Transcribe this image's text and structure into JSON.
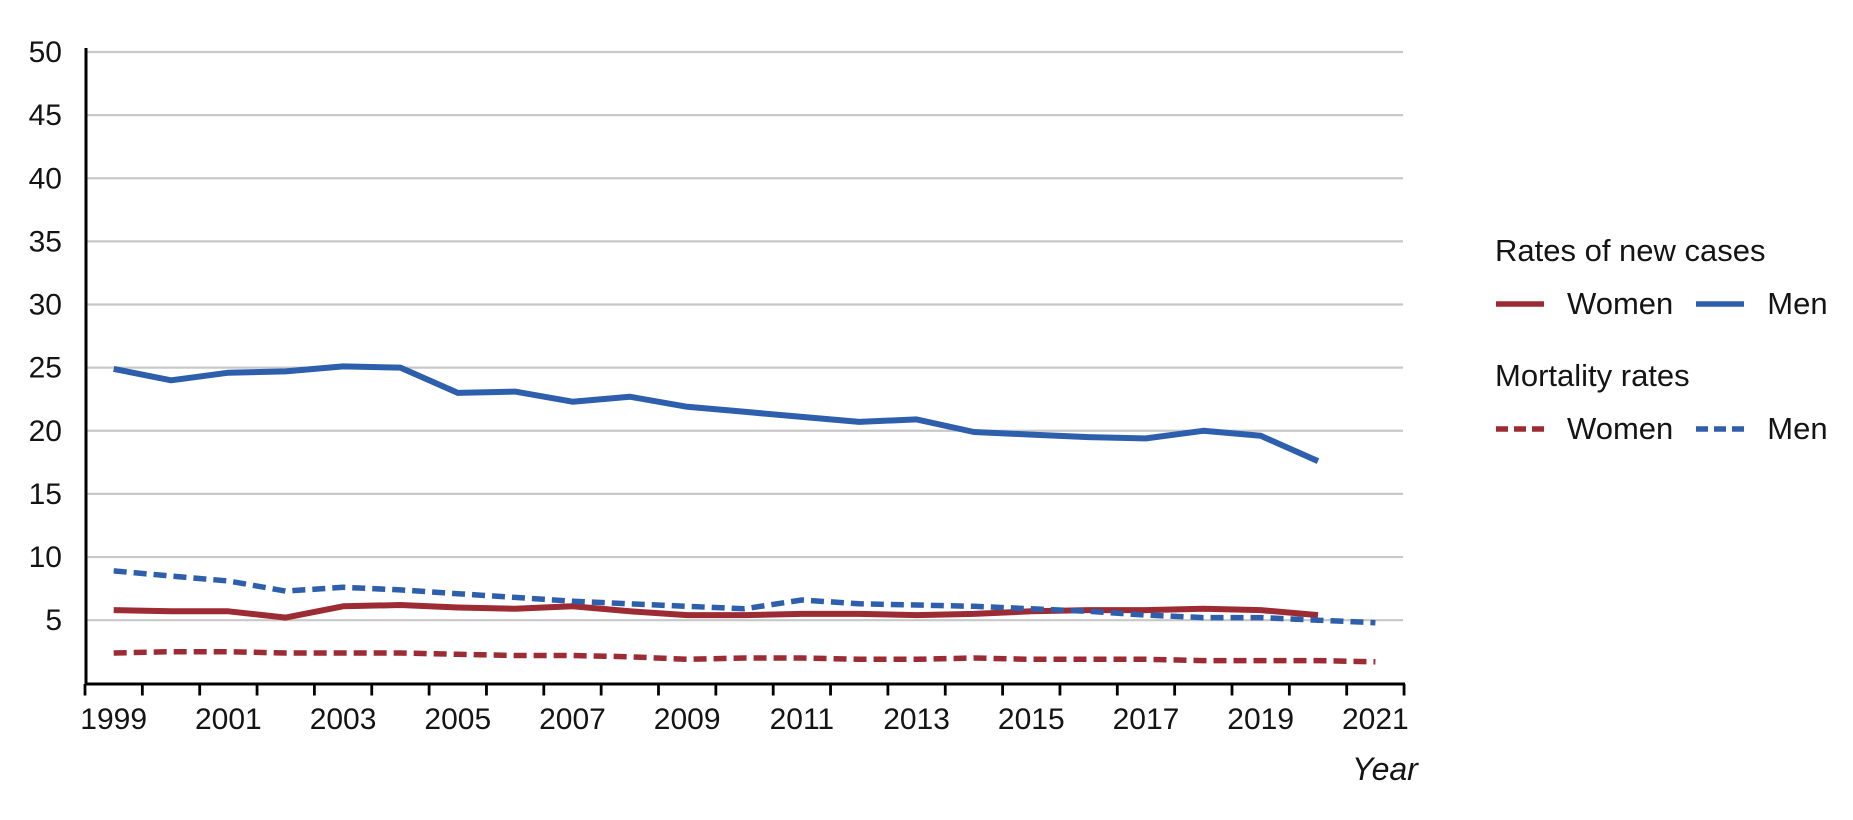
{
  "chart_data": {
    "type": "line",
    "xlabel": "Year",
    "ylabel": "",
    "ylim": [
      0,
      50
    ],
    "yticks": [
      5,
      10,
      15,
      20,
      25,
      30,
      35,
      40,
      45,
      50
    ],
    "x_labeled_years": [
      1999,
      2001,
      2003,
      2005,
      2007,
      2009,
      2011,
      2013,
      2015,
      2017,
      2019,
      2021
    ],
    "x_first_year": 1999,
    "x_last_year": 2021,
    "grid": "horizontal",
    "legend_position": "right",
    "colors": {
      "women": "#9D2B33",
      "men": "#2E5FAC",
      "gridline": "#C8C8C8",
      "axis": "#000000"
    },
    "legend": {
      "sections": [
        {
          "title": "Rates of new cases",
          "items": [
            {
              "label": "Women",
              "style": "solid",
              "color": "#9D2B33"
            },
            {
              "label": "Men",
              "style": "solid",
              "color": "#2E5FAC"
            }
          ]
        },
        {
          "title": "Mortality rates",
          "items": [
            {
              "label": "Women",
              "style": "dashed",
              "color": "#9D2B33"
            },
            {
              "label": "Men",
              "style": "dashed",
              "color": "#2E5FAC"
            }
          ]
        }
      ]
    },
    "series": [
      {
        "id": "new-cases-men",
        "name": "Rates of new cases — Men",
        "style": "solid",
        "color": "#2E5FAC",
        "years": [
          1999,
          2000,
          2001,
          2002,
          2003,
          2004,
          2005,
          2006,
          2007,
          2008,
          2009,
          2010,
          2011,
          2012,
          2013,
          2014,
          2015,
          2016,
          2017,
          2018,
          2019,
          2020
        ],
        "values": [
          24.9,
          24.0,
          24.6,
          24.7,
          25.1,
          25.0,
          23.0,
          23.1,
          22.3,
          22.7,
          21.9,
          21.5,
          21.1,
          20.7,
          20.9,
          19.9,
          19.7,
          19.5,
          19.4,
          20.0,
          19.6,
          17.6
        ]
      },
      {
        "id": "new-cases-women",
        "name": "Rates of new cases — Women",
        "style": "solid",
        "color": "#9D2B33",
        "years": [
          1999,
          2000,
          2001,
          2002,
          2003,
          2004,
          2005,
          2006,
          2007,
          2008,
          2009,
          2010,
          2011,
          2012,
          2013,
          2014,
          2015,
          2016,
          2017,
          2018,
          2019,
          2020
        ],
        "values": [
          5.8,
          5.7,
          5.7,
          5.2,
          6.1,
          6.2,
          6.0,
          5.9,
          6.1,
          5.7,
          5.4,
          5.4,
          5.5,
          5.5,
          5.4,
          5.5,
          5.7,
          5.8,
          5.8,
          5.9,
          5.8,
          5.4
        ]
      },
      {
        "id": "mortality-men",
        "name": "Mortality rates — Men",
        "style": "dashed",
        "color": "#2E5FAC",
        "years": [
          1999,
          2000,
          2001,
          2002,
          2003,
          2004,
          2005,
          2006,
          2007,
          2008,
          2009,
          2010,
          2011,
          2012,
          2013,
          2014,
          2015,
          2016,
          2017,
          2018,
          2019,
          2020,
          2021
        ],
        "values": [
          8.9,
          8.5,
          8.1,
          7.3,
          7.6,
          7.4,
          7.1,
          6.8,
          6.5,
          6.3,
          6.1,
          5.9,
          6.6,
          6.3,
          6.2,
          6.1,
          5.9,
          5.7,
          5.4,
          5.2,
          5.2,
          5.0,
          4.8
        ]
      },
      {
        "id": "mortality-women",
        "name": "Mortality rates — Women",
        "style": "dashed",
        "color": "#9D2B33",
        "years": [
          1999,
          2000,
          2001,
          2002,
          2003,
          2004,
          2005,
          2006,
          2007,
          2008,
          2009,
          2010,
          2011,
          2012,
          2013,
          2014,
          2015,
          2016,
          2017,
          2018,
          2019,
          2020,
          2021
        ],
        "values": [
          2.4,
          2.5,
          2.5,
          2.4,
          2.4,
          2.4,
          2.3,
          2.2,
          2.2,
          2.1,
          1.9,
          2.0,
          2.0,
          1.9,
          1.9,
          2.0,
          1.9,
          1.9,
          1.9,
          1.8,
          1.8,
          1.8,
          1.7
        ]
      }
    ]
  }
}
